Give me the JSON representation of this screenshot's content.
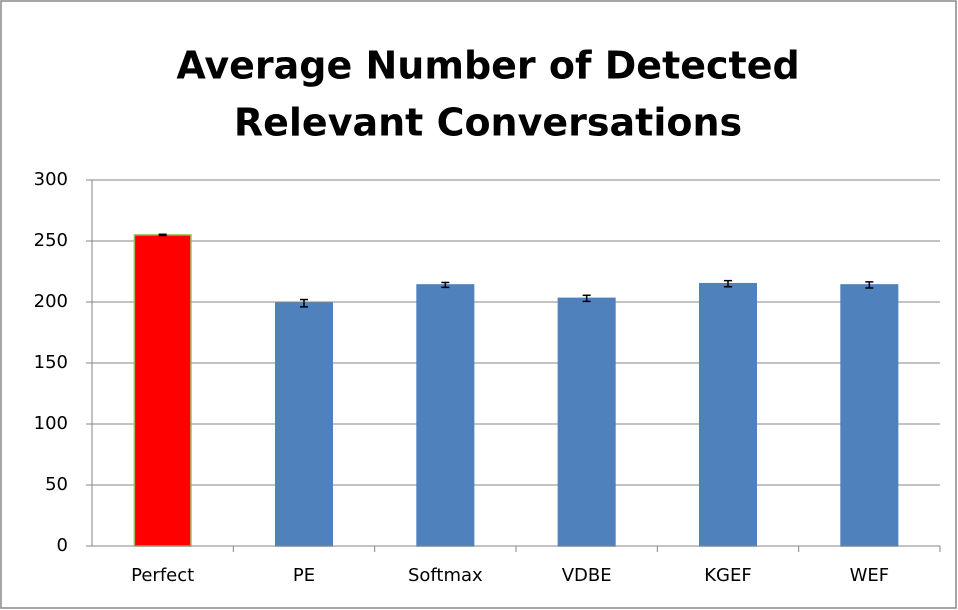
{
  "chart_data": {
    "type": "bar",
    "title": [
      "Average Number of Detected",
      "Relevant Conversations"
    ],
    "categories": [
      "Perfect",
      "PE",
      "Softmax",
      "VDBE",
      "KGEF",
      "WEF"
    ],
    "values": [
      255,
      199,
      214,
      203,
      215,
      214
    ],
    "errors": [
      0.5,
      3,
      2,
      2.5,
      2.5,
      2.5
    ],
    "colors": [
      "#ff0000",
      "#4f81bd",
      "#4f81bd",
      "#4f81bd",
      "#4f81bd",
      "#4f81bd"
    ],
    "edge_colors": [
      "#9bbb59",
      "#4f81bd",
      "#4f81bd",
      "#4f81bd",
      "#4f81bd",
      "#4f81bd"
    ],
    "ylim": [
      0,
      300
    ],
    "yticks": [
      0,
      50,
      100,
      150,
      200,
      250,
      300
    ],
    "grid": true
  }
}
